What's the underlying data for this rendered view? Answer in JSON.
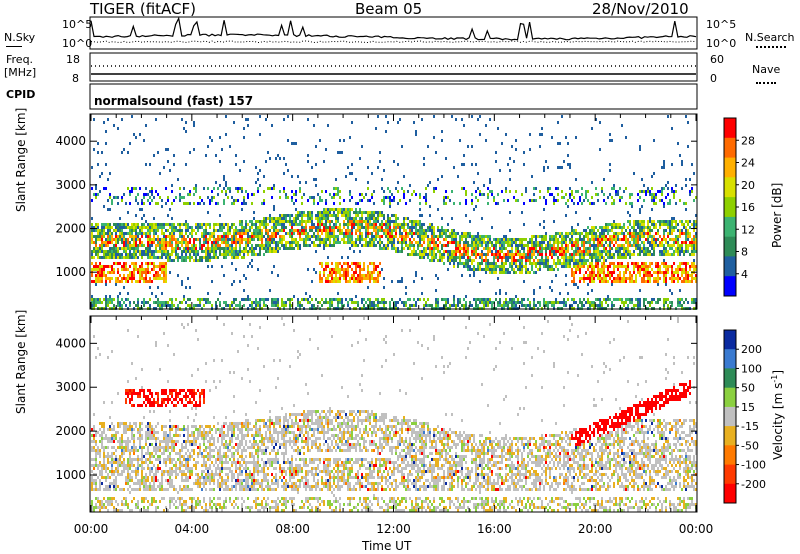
{
  "header": {
    "title": "TIGER (fitACF)",
    "beam": "Beam 05",
    "date": "28/Nov/2010"
  },
  "strips": {
    "nsky_label": "N.Sky",
    "nsearch_label": "N.Search",
    "nsky_ticks": [
      "10^5",
      "10^0"
    ],
    "nsearch_ticks": [
      "10^5",
      "10^0"
    ],
    "freq_label_1": "Freq.",
    "freq_label_2": "[MHz]",
    "freq_ticks": [
      "18",
      "8"
    ],
    "nave_label": "Nave",
    "nave_ticks": [
      "60",
      "0"
    ],
    "cpid_label": "CPID",
    "cpid_value": "normalsound (fast) 157"
  },
  "chart_data": [
    {
      "type": "heatmap",
      "name": "power",
      "ylabel": "Slant Range [km]",
      "ylim": [
        180,
        4600
      ],
      "yticks": [
        "4000",
        "3000",
        "2000",
        "1000"
      ],
      "colorbar_label": "Power [dB]",
      "colorbar_ticks": [
        "28",
        "24",
        "20",
        "16",
        "12",
        "8",
        "4"
      ],
      "colorbar_colors": [
        "#ff0000",
        "#ff6a00",
        "#ffb000",
        "#d8e000",
        "#8ed000",
        "#3cb371",
        "#2e8b57",
        "#1f5fa0",
        "#0000ff"
      ]
    },
    {
      "type": "heatmap",
      "name": "velocity",
      "ylabel": "Slant Range [km]",
      "xlabel": "Time UT",
      "ylim": [
        180,
        4600
      ],
      "yticks": [
        "4000",
        "3000",
        "2000",
        "1000"
      ],
      "xticks": [
        "00:00",
        "04:00",
        "08:00",
        "12:00",
        "16:00",
        "20:00",
        "00:00"
      ],
      "colorbar_label_1": "Velocity",
      "colorbar_label_2": "[m s",
      "colorbar_label_3": "-1",
      "colorbar_label_4": "]",
      "colorbar_ticks": [
        "200",
        "100",
        "50",
        "15",
        "-15",
        "-50",
        "-100",
        "-200"
      ],
      "colorbar_colors": [
        "#0a2aa0",
        "#3a7ad0",
        "#2e8b57",
        "#8bd040",
        "#c0c0c0",
        "#e8b020",
        "#ff7a00",
        "#ff3a00",
        "#ff0000"
      ]
    }
  ]
}
